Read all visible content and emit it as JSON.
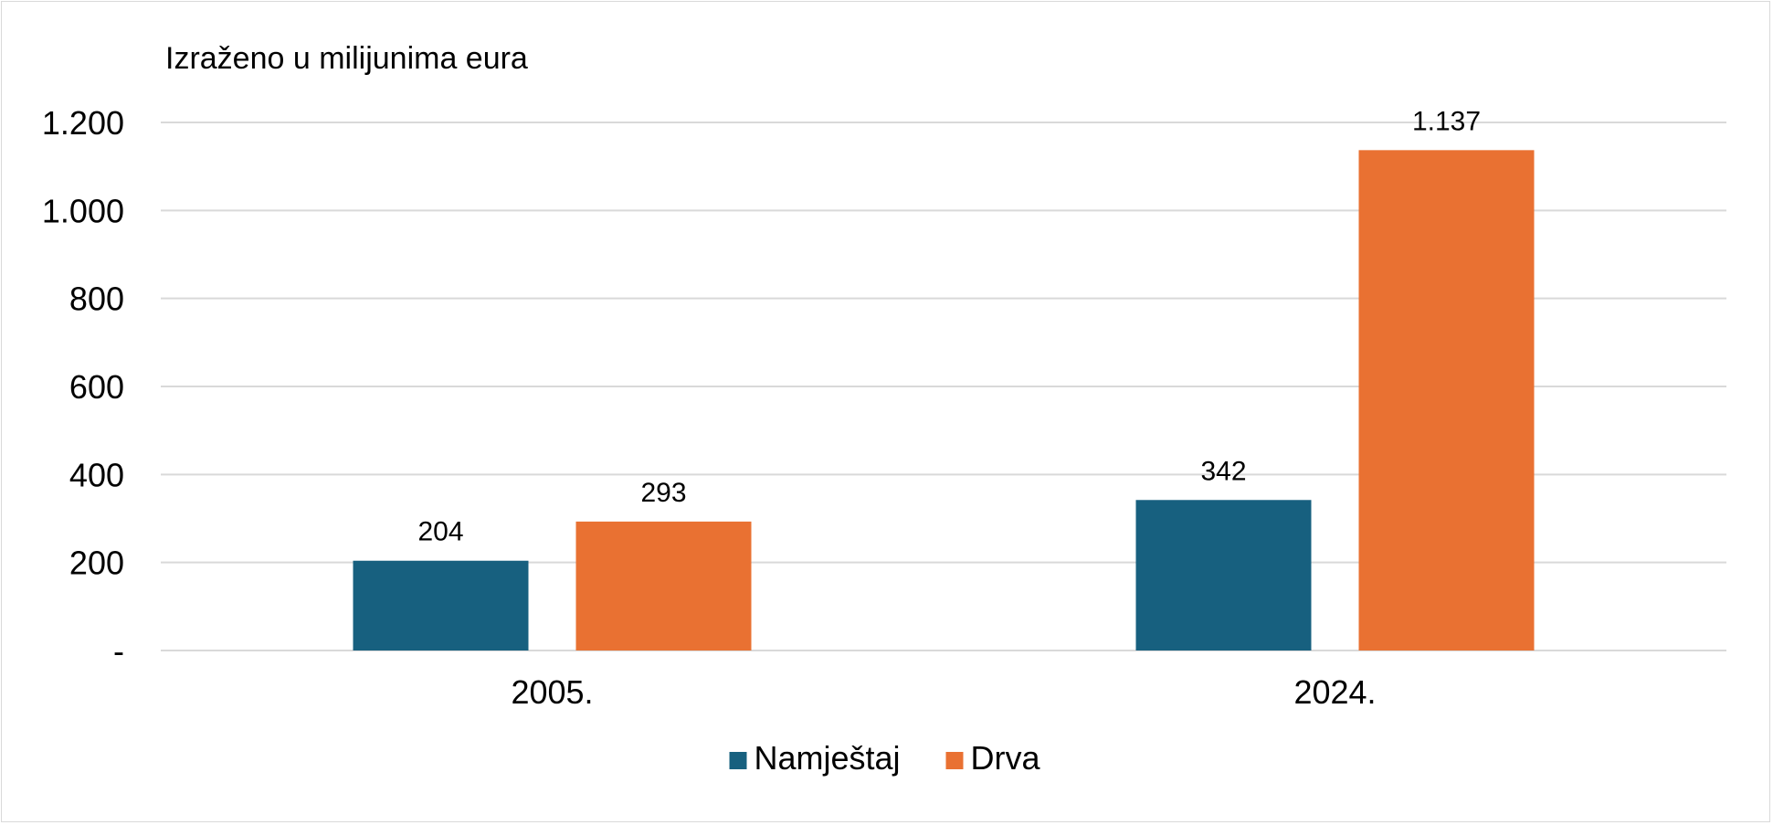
{
  "chart_data": {
    "type": "bar",
    "unit_label": "Izraženo u milijunima eura",
    "categories": [
      "2005.",
      "2024."
    ],
    "series": [
      {
        "name": "Namještaj",
        "color": "#17607f",
        "values": [
          204,
          342
        ],
        "value_labels": [
          "204",
          "342"
        ]
      },
      {
        "name": "Drva",
        "color": "#e97132",
        "values": [
          293,
          1137
        ],
        "value_labels": [
          "293",
          "1.137"
        ]
      }
    ],
    "ylim": [
      0,
      1200
    ],
    "yticks": [
      0,
      200,
      400,
      600,
      800,
      1000,
      1200
    ],
    "ytick_labels": [
      "-",
      "200",
      "400",
      "600",
      "800",
      "1.000",
      "1.200"
    ],
    "grid": true,
    "legend_position": "bottom"
  }
}
